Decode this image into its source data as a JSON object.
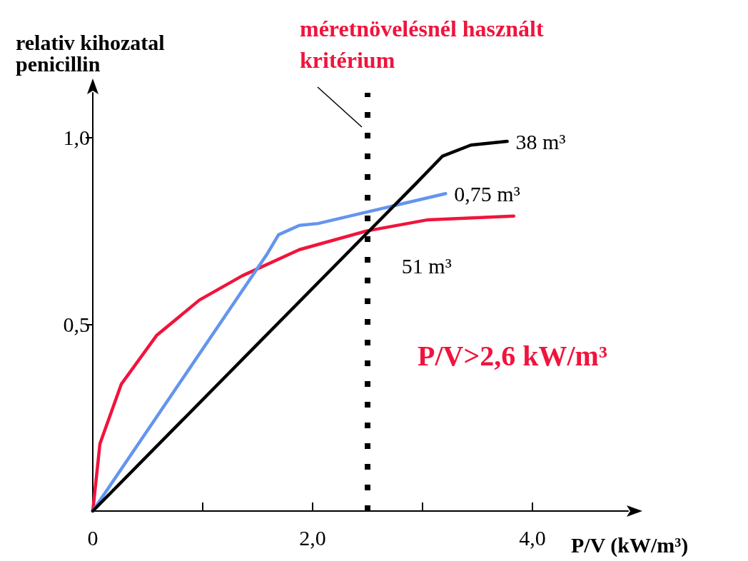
{
  "chart_data": {
    "type": "line",
    "xlabel": "P/V (kW/m³)",
    "ylabel": "relativ kihozatal\npenicillin",
    "xlim": [
      0,
      4.87
    ],
    "ylim": [
      0,
      1.12
    ],
    "xticks": [
      {
        "value": 0,
        "label": "0"
      },
      {
        "value": 1,
        "label": null
      },
      {
        "value": 2,
        "label": "2,0"
      },
      {
        "value": 3,
        "label": null
      },
      {
        "value": 4,
        "label": "4,0"
      }
    ],
    "yticks": [
      {
        "value": 0.5,
        "label": "0,5"
      },
      {
        "value": 1,
        "label": "1,0"
      }
    ],
    "grid": false,
    "legend": false,
    "marker": "none",
    "line_style": "solid",
    "series": [
      {
        "name": "38 m³",
        "color": "#000000",
        "x": [
          0,
          2.95,
          3.18,
          3.44,
          3.77
        ],
        "values": [
          0,
          0.88,
          0.95,
          0.98,
          0.99
        ]
      },
      {
        "name": "0,75 m³",
        "color": "#6495ed",
        "x": [
          0,
          1.59,
          1.69,
          1.88,
          2.05,
          3.21
        ],
        "values": [
          0,
          0.69,
          0.74,
          0.765,
          0.77,
          0.85
        ]
      },
      {
        "name": "51 m³",
        "color": "#f0143c",
        "x": [
          0,
          0.065,
          0.26,
          0.58,
          0.97,
          1.36,
          1.88,
          2.49,
          3.05,
          3.83
        ],
        "values": [
          0,
          0.18,
          0.34,
          0.47,
          0.565,
          0.63,
          0.7,
          0.75,
          0.78,
          0.79
        ]
      }
    ],
    "ref_lines": [
      {
        "axis": "x",
        "value": 2.5,
        "label": "méretnövelésnél használt\nkritérium",
        "color": "#000000",
        "line_style": "dotted"
      }
    ],
    "annotations": [
      "P/V>2,6 kW/m³"
    ]
  }
}
